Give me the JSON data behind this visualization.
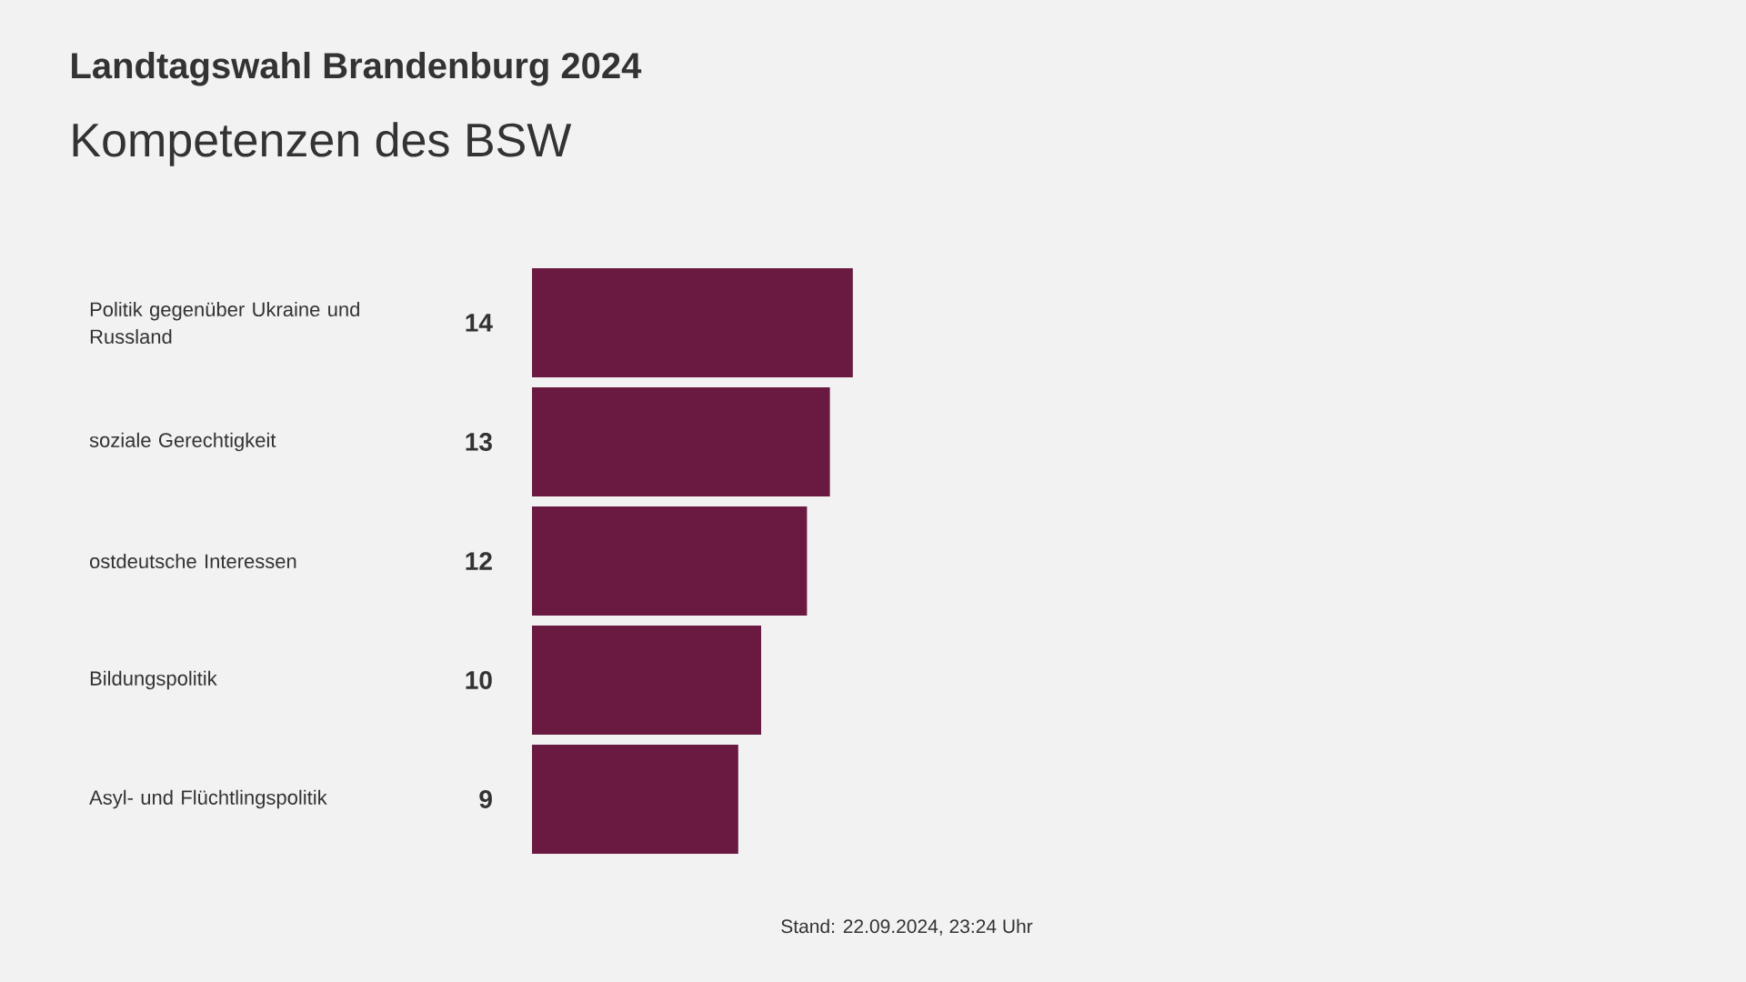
{
  "chart_data": {
    "type": "bar",
    "orientation": "horizontal",
    "title": "Landtagswahl Brandenburg 2024",
    "subtitle": "Kompetenzen des BSW",
    "categories": [
      "Politik gegenüber Ukraine und Russland",
      "soziale Gerechtigkeit",
      "ostdeutsche Interessen",
      "Bildungspolitik",
      "Asyl- und Flüchtlingspolitik"
    ],
    "values": [
      14,
      13,
      12,
      10,
      9
    ],
    "color": "#6a1a40",
    "data_labels": true,
    "annotations": [
      "Stand:  22.09.2024, 23:24 Uhr"
    ]
  }
}
